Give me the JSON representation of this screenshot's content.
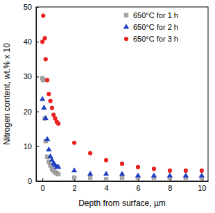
{
  "chart_data": {
    "type": "scatter",
    "x_label": "Depth from surface, µm",
    "y_label": "Nitrogen content, wt.% x 10",
    "xlim": [
      -0.4,
      10.4
    ],
    "xticks": [
      0,
      2,
      4,
      6,
      8,
      10
    ],
    "ylim": [
      0,
      50
    ],
    "yticks": [
      0,
      10,
      20,
      30,
      40,
      50
    ],
    "legend": "top-right",
    "series": [
      {
        "name": "650°C for 1 h",
        "color": "#aaaaaa",
        "marker": "square",
        "x": [
          0,
          0.05,
          0.15,
          0.2,
          0.3,
          0.4,
          0.5,
          0.6,
          0.7,
          0.8,
          0.9,
          1.0,
          2,
          3,
          4,
          5,
          6,
          7,
          8,
          9,
          10
        ],
        "values": [
          29.5,
          29,
          18,
          11.5,
          7,
          5.5,
          4.5,
          3.5,
          3,
          2.5,
          2.2,
          2,
          1,
          1,
          0.5,
          1,
          1,
          1,
          1,
          1,
          1
        ]
      },
      {
        "name": "650°C for 2 h",
        "color": "#1f3fc4",
        "marker": "triangle",
        "x": [
          0,
          0.1,
          0.2,
          0.3,
          0.4,
          0.5,
          0.6,
          0.7,
          0.8,
          0.9,
          1.0,
          2,
          3,
          4,
          5,
          6,
          7,
          8,
          9,
          10
        ],
        "values": [
          23.5,
          21,
          18,
          12,
          9,
          7,
          6,
          5,
          4.5,
          4,
          4,
          3,
          2,
          2,
          2,
          1.5,
          1.5,
          1.5,
          1.5,
          1.5
        ]
      },
      {
        "name": "650°C for 3 h",
        "color": "#e8201e",
        "marker": "circle",
        "x": [
          0,
          0.05,
          0.15,
          0.2,
          0.3,
          0.4,
          0.5,
          0.6,
          0.7,
          0.8,
          0.9,
          1.0,
          2,
          3,
          4,
          5,
          6,
          7,
          8,
          9,
          10
        ],
        "values": [
          40,
          47.5,
          41,
          35,
          29,
          25,
          23,
          21,
          19,
          18,
          17,
          16.5,
          11,
          8,
          6,
          5,
          4,
          3.5,
          3,
          3,
          3
        ]
      }
    ]
  }
}
